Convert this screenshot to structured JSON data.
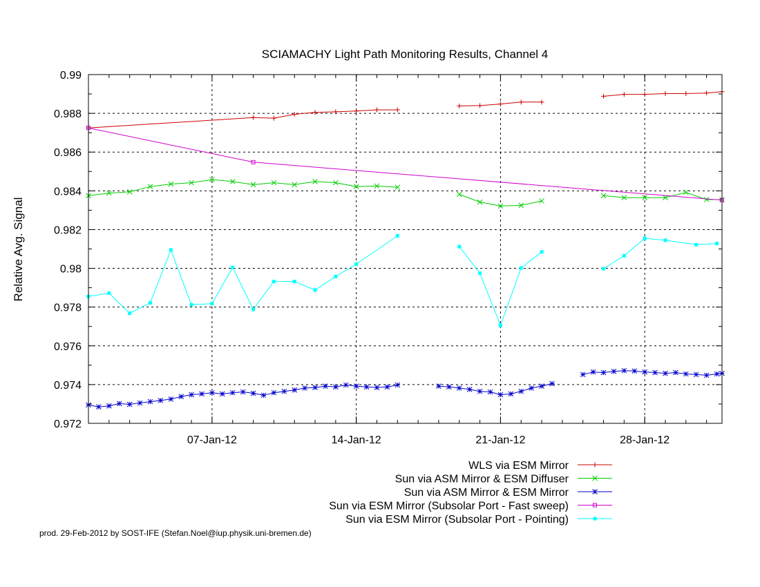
{
  "chart_data": {
    "type": "line",
    "title": "SCIAMACHY Light Path Monitoring Results, Channel 4",
    "ylabel": "Relative Avg. Signal",
    "xlabel": "",
    "ylim": [
      0.972,
      0.99
    ],
    "xlim": [
      "2012-01-01T00:00",
      "2012-01-31T18:00"
    ],
    "yticks": [
      0.972,
      0.974,
      0.976,
      0.978,
      0.98,
      0.982,
      0.984,
      0.986,
      0.988,
      0.99
    ],
    "ytick_labels": [
      "0.972",
      "0.974",
      "0.976",
      "0.978",
      "0.98",
      "0.982",
      "0.984",
      "0.986",
      "0.988",
      "0.99"
    ],
    "xticks": [
      "2012-01-07",
      "2012-01-14",
      "2012-01-21",
      "2012-01-28"
    ],
    "xtick_labels": [
      "07-Jan-12",
      "14-Jan-12",
      "21-Jan-12",
      "28-Jan-12"
    ],
    "grid": "dashed at major ticks",
    "legend": "bottom-right, below plot",
    "footer": "prod. 29-Feb-2012 by SOST-IFE (Stefan.Noel@iup.physik.uni-bremen.de)",
    "series": [
      {
        "name": "WLS via ESM Mirror",
        "color": "#cc0000",
        "marker": "plus",
        "segments": [
          [
            [
              "2012-01-01T00:00",
              0.98725
            ],
            [
              "2012-01-09T00:00",
              0.98778
            ],
            [
              "2012-01-10T00:00",
              0.98775
            ],
            [
              "2012-01-11T00:00",
              0.98795
            ],
            [
              "2012-01-12T00:00",
              0.98805
            ],
            [
              "2012-01-13T00:00",
              0.98808
            ],
            [
              "2012-01-14T00:00",
              0.98812
            ],
            [
              "2012-01-15T00:00",
              0.98818
            ],
            [
              "2012-01-16T00:00",
              0.98818
            ]
          ],
          [
            [
              "2012-01-19T00:00",
              0.98838
            ],
            [
              "2012-01-20T00:00",
              0.9884
            ],
            [
              "2012-01-21T00:00",
              0.98848
            ],
            [
              "2012-01-22T00:00",
              0.98858
            ],
            [
              "2012-01-23T00:00",
              0.98858
            ]
          ],
          [
            [
              "2012-01-26T00:00",
              0.98888
            ],
            [
              "2012-01-27T00:00",
              0.98898
            ],
            [
              "2012-01-28T00:00",
              0.98898
            ],
            [
              "2012-01-29T00:00",
              0.98902
            ],
            [
              "2012-01-30T00:00",
              0.98902
            ],
            [
              "2012-01-31T00:00",
              0.98905
            ],
            [
              "2012-01-31T18:00",
              0.98912
            ]
          ]
        ]
      },
      {
        "name": "Sun via ASM Mirror & ESM Diffuser",
        "color": "#00cc00",
        "marker": "x",
        "segments": [
          [
            [
              "2012-01-01T00:00",
              0.98375
            ],
            [
              "2012-01-02T00:00",
              0.98388
            ],
            [
              "2012-01-03T00:00",
              0.98395
            ],
            [
              "2012-01-04T00:00",
              0.98422
            ],
            [
              "2012-01-05T00:00",
              0.98435
            ],
            [
              "2012-01-06T00:00",
              0.98442
            ],
            [
              "2012-01-07T00:00",
              0.98458
            ],
            [
              "2012-01-08T00:00",
              0.98448
            ],
            [
              "2012-01-09T00:00",
              0.98432
            ],
            [
              "2012-01-10T00:00",
              0.98442
            ],
            [
              "2012-01-11T00:00",
              0.98432
            ],
            [
              "2012-01-12T00:00",
              0.98448
            ],
            [
              "2012-01-13T00:00",
              0.98442
            ],
            [
              "2012-01-14T00:00",
              0.98422
            ],
            [
              "2012-01-15T00:00",
              0.98425
            ],
            [
              "2012-01-16T00:00",
              0.98418
            ]
          ],
          [
            [
              "2012-01-19T00:00",
              0.98382
            ],
            [
              "2012-01-20T00:00",
              0.98342
            ],
            [
              "2012-01-21T00:00",
              0.98322
            ],
            [
              "2012-01-22T00:00",
              0.98325
            ],
            [
              "2012-01-23T00:00",
              0.98348
            ]
          ],
          [
            [
              "2012-01-26T00:00",
              0.98375
            ],
            [
              "2012-01-27T00:00",
              0.98365
            ],
            [
              "2012-01-28T00:00",
              0.98365
            ],
            [
              "2012-01-29T00:00",
              0.98365
            ],
            [
              "2012-01-30T00:00",
              0.98392
            ],
            [
              "2012-01-31T00:00",
              0.98355
            ],
            [
              "2012-01-31T18:00",
              0.98355
            ]
          ]
        ]
      },
      {
        "name": "Sun via ASM Mirror & ESM Mirror",
        "color": "#0000cc",
        "marker": "star",
        "segments": [
          [
            [
              "2012-01-01T00:00",
              0.97295
            ],
            [
              "2012-01-01T12:00",
              0.97285
            ],
            [
              "2012-01-02T00:00",
              0.9729
            ],
            [
              "2012-01-02T12:00",
              0.97302
            ],
            [
              "2012-01-03T00:00",
              0.97298
            ],
            [
              "2012-01-03T12:00",
              0.97305
            ],
            [
              "2012-01-04T00:00",
              0.97312
            ],
            [
              "2012-01-04T12:00",
              0.97318
            ],
            [
              "2012-01-05T00:00",
              0.97325
            ],
            [
              "2012-01-05T12:00",
              0.97338
            ],
            [
              "2012-01-06T00:00",
              0.97348
            ],
            [
              "2012-01-06T12:00",
              0.97352
            ],
            [
              "2012-01-07T00:00",
              0.97358
            ],
            [
              "2012-01-07T12:00",
              0.97352
            ],
            [
              "2012-01-08T00:00",
              0.97358
            ],
            [
              "2012-01-08T12:00",
              0.97362
            ],
            [
              "2012-01-09T00:00",
              0.97355
            ],
            [
              "2012-01-09T12:00",
              0.97345
            ],
            [
              "2012-01-10T00:00",
              0.97358
            ],
            [
              "2012-01-10T12:00",
              0.97365
            ],
            [
              "2012-01-11T00:00",
              0.97372
            ],
            [
              "2012-01-11T12:00",
              0.97382
            ],
            [
              "2012-01-12T00:00",
              0.97385
            ],
            [
              "2012-01-12T12:00",
              0.97392
            ],
            [
              "2012-01-13T00:00",
              0.97388
            ],
            [
              "2012-01-13T12:00",
              0.97398
            ],
            [
              "2012-01-14T00:00",
              0.97392
            ],
            [
              "2012-01-14T12:00",
              0.97388
            ],
            [
              "2012-01-15T00:00",
              0.97385
            ],
            [
              "2012-01-15T12:00",
              0.97388
            ],
            [
              "2012-01-16T00:00",
              0.97398
            ]
          ],
          [
            [
              "2012-01-18T00:00",
              0.97392
            ],
            [
              "2012-01-18T12:00",
              0.97388
            ],
            [
              "2012-01-19T00:00",
              0.97382
            ],
            [
              "2012-01-19T12:00",
              0.97375
            ],
            [
              "2012-01-20T00:00",
              0.97365
            ],
            [
              "2012-01-20T12:00",
              0.97362
            ],
            [
              "2012-01-21T00:00",
              0.97348
            ],
            [
              "2012-01-21T12:00",
              0.97352
            ],
            [
              "2012-01-22T00:00",
              0.97365
            ],
            [
              "2012-01-22T12:00",
              0.97382
            ],
            [
              "2012-01-23T00:00",
              0.97392
            ],
            [
              "2012-01-23T12:00",
              0.97405
            ]
          ],
          [
            [
              "2012-01-25T00:00",
              0.97452
            ],
            [
              "2012-01-25T12:00",
              0.97465
            ],
            [
              "2012-01-26T00:00",
              0.97462
            ],
            [
              "2012-01-26T12:00",
              0.97468
            ],
            [
              "2012-01-27T00:00",
              0.97472
            ],
            [
              "2012-01-27T12:00",
              0.9747
            ],
            [
              "2012-01-28T00:00",
              0.97465
            ],
            [
              "2012-01-28T12:00",
              0.97462
            ],
            [
              "2012-01-29T00:00",
              0.97458
            ],
            [
              "2012-01-29T12:00",
              0.97462
            ],
            [
              "2012-01-30T00:00",
              0.97455
            ],
            [
              "2012-01-30T12:00",
              0.97452
            ],
            [
              "2012-01-31T00:00",
              0.97448
            ],
            [
              "2012-01-31T12:00",
              0.97455
            ],
            [
              "2012-01-31T18:00",
              0.97458
            ]
          ]
        ]
      },
      {
        "name": "Sun via ESM Mirror (Subsolar Port - Fast sweep)",
        "color": "#cc00cc",
        "marker": "square-open",
        "segments": [
          [
            [
              "2012-01-01T00:00",
              0.98725
            ],
            [
              "2012-01-09T00:00",
              0.98548
            ],
            [
              "2012-01-31T18:00",
              0.98352
            ]
          ]
        ]
      },
      {
        "name": "Sun via ESM Mirror (Subsolar Port - Pointing)",
        "color": "#00ffff",
        "marker": "square-filled",
        "segments": [
          [
            [
              "2012-01-01T00:00",
              0.97855
            ],
            [
              "2012-01-02T00:00",
              0.97872
            ],
            [
              "2012-01-03T00:00",
              0.97768
            ],
            [
              "2012-01-04T00:00",
              0.97822
            ],
            [
              "2012-01-05T00:00",
              0.98095
            ],
            [
              "2012-01-06T00:00",
              0.97812
            ],
            [
              "2012-01-07T00:00",
              0.97818
            ],
            [
              "2012-01-08T00:00",
              0.98005
            ],
            [
              "2012-01-09T00:00",
              0.97788
            ],
            [
              "2012-01-10T00:00",
              0.97932
            ],
            [
              "2012-01-11T00:00",
              0.97932
            ],
            [
              "2012-01-12T00:00",
              0.97888
            ],
            [
              "2012-01-13T00:00",
              0.97958
            ],
            [
              "2012-01-14T00:00",
              0.98022
            ],
            [
              "2012-01-16T00:00",
              0.98168
            ]
          ],
          [
            [
              "2012-01-19T00:00",
              0.98112
            ],
            [
              "2012-01-20T00:00",
              0.97975
            ],
            [
              "2012-01-21T00:00",
              0.97705
            ],
            [
              "2012-01-22T00:00",
              0.98002
            ],
            [
              "2012-01-23T00:00",
              0.98085
            ]
          ],
          [
            [
              "2012-01-26T00:00",
              0.97998
            ],
            [
              "2012-01-27T00:00",
              0.98065
            ],
            [
              "2012-01-28T00:00",
              0.98155
            ],
            [
              "2012-01-29T00:00",
              0.98145
            ],
            [
              "2012-01-30T12:00",
              0.98122
            ],
            [
              "2012-01-31T12:00",
              0.98128
            ]
          ]
        ]
      }
    ]
  }
}
